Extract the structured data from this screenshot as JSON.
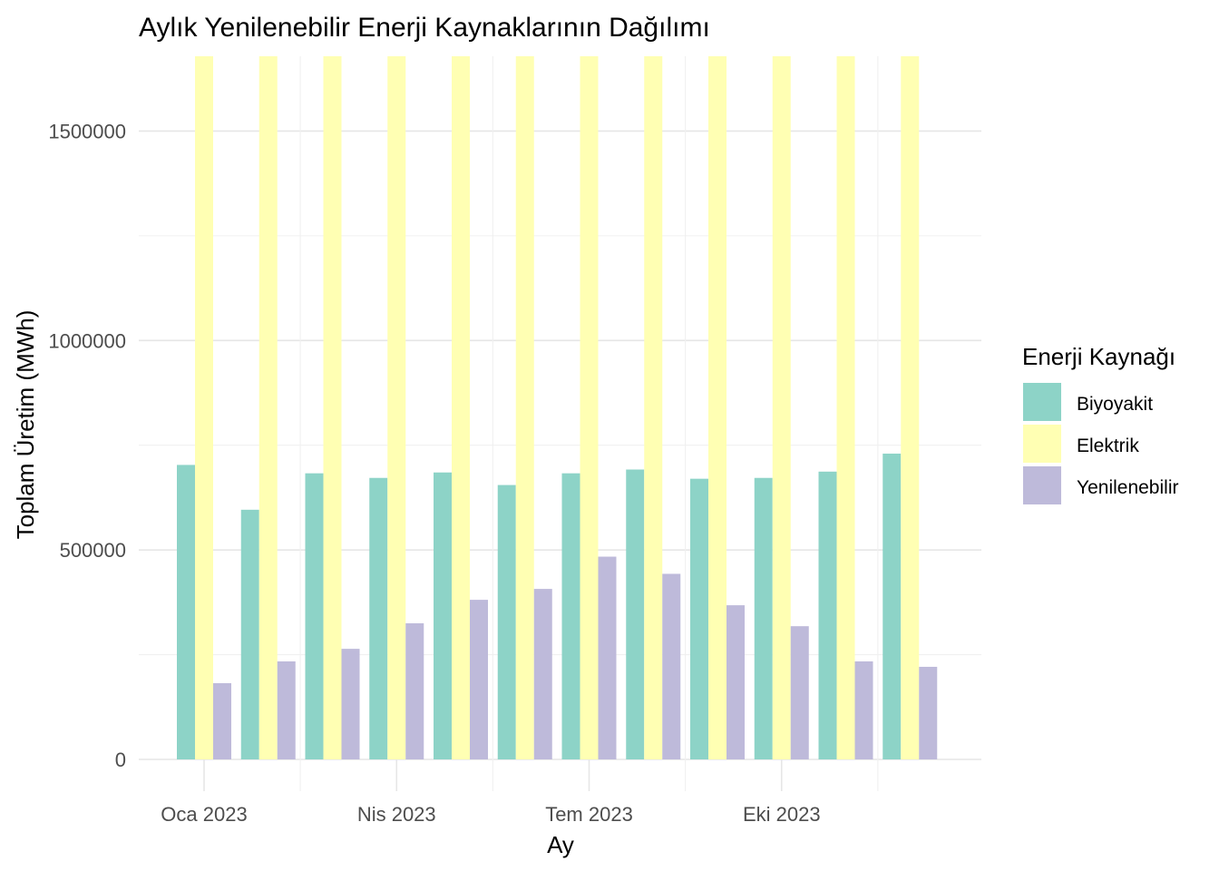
{
  "chart_data": {
    "type": "bar",
    "title": "Aylık Yenilenebilir Enerji Kaynaklarının Dağılımı",
    "xlabel": "Ay",
    "ylabel": "Toplam Üretim (MWh)",
    "categories": [
      "2023-01",
      "2023-02",
      "2023-03",
      "2023-04",
      "2023-05",
      "2023-06",
      "2023-07",
      "2023-08",
      "2023-09",
      "2023-10",
      "2023-11",
      "2023-12"
    ],
    "x_tick_labels": [
      {
        "label": "Oca 2023",
        "at": "2023-01"
      },
      {
        "label": "Nis 2023",
        "at": "2023-04"
      },
      {
        "label": "Tem 2023",
        "at": "2023-07"
      },
      {
        "label": "Eki 2023",
        "at": "2023-10"
      }
    ],
    "y_ticks": [
      0,
      500000,
      1000000,
      1500000
    ],
    "ylim": [
      0,
      1680000
    ],
    "grid": true,
    "legend": {
      "title": "Enerji Kaynağı",
      "position": "right"
    },
    "series": [
      {
        "name": "Biyoyakit",
        "color": "#8dd3c7",
        "values": [
          703000,
          596000,
          683000,
          672000,
          685000,
          655000,
          683000,
          692000,
          670000,
          672000,
          687000,
          730000
        ]
      },
      {
        "name": "Elektrik",
        "color": "#ffffb3",
        "values": [
          1680000,
          1680000,
          1680000,
          1680000,
          1680000,
          1680000,
          1680000,
          1680000,
          1680000,
          1680000,
          1680000,
          1680000
        ]
      },
      {
        "name": "Yenilenebilir",
        "color": "#bebada",
        "values": [
          182000,
          234000,
          264000,
          325000,
          381000,
          407000,
          484000,
          443000,
          368000,
          318000,
          234000,
          221000
        ]
      }
    ]
  }
}
